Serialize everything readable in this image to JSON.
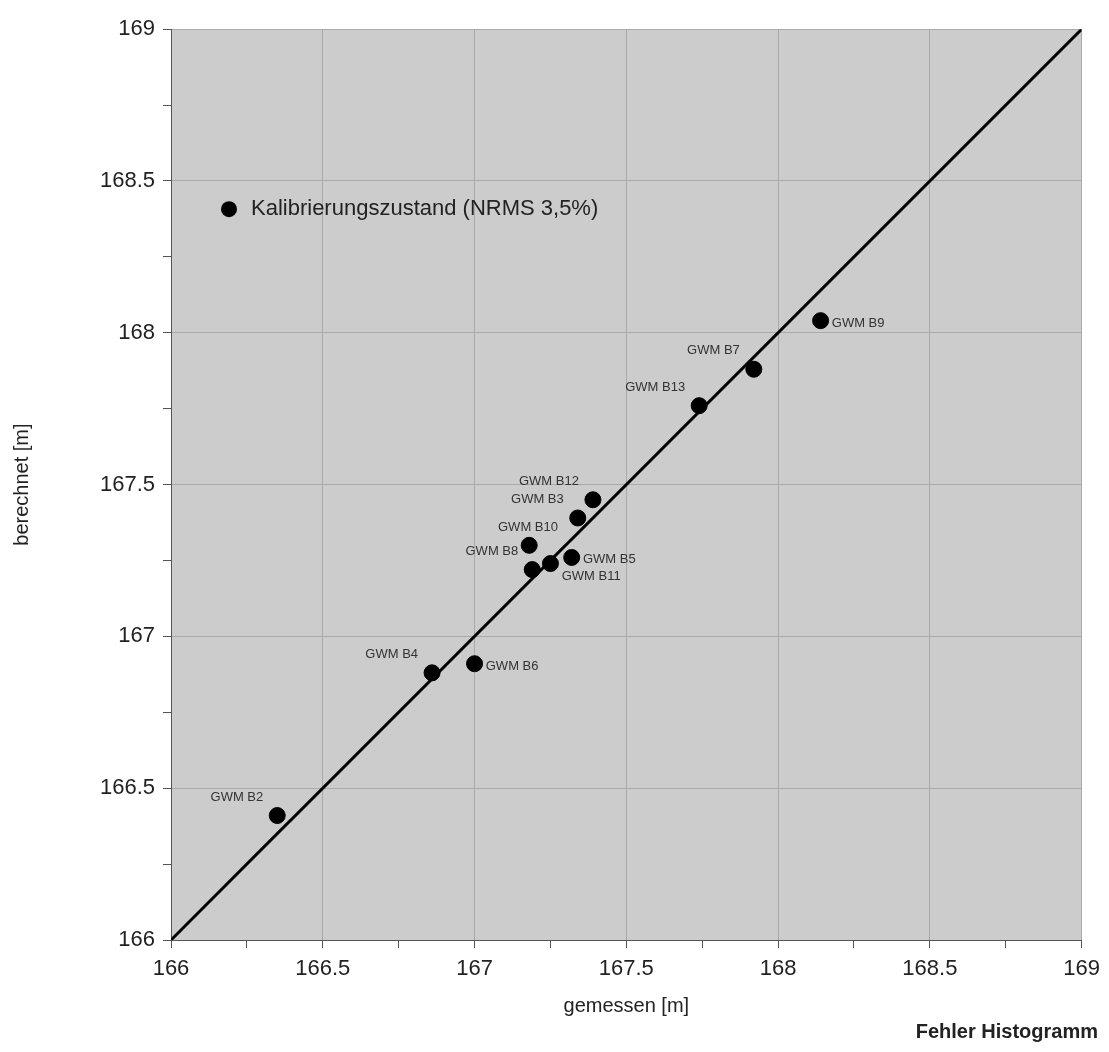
{
  "chart_data": {
    "type": "scatter",
    "xlabel": "gemessen [m]",
    "ylabel": "berechnet [m]",
    "xlim": [
      166,
      169
    ],
    "ylim": [
      166,
      169
    ],
    "xticks": [
      166,
      {
        "value": 166.25,
        "label": null
      },
      166.5,
      {
        "value": 166.75,
        "label": null
      },
      167,
      {
        "value": 167.25,
        "label": null
      },
      167.5,
      {
        "value": 167.75,
        "label": null
      },
      168,
      {
        "value": 168.25,
        "label": null
      },
      168.5,
      {
        "value": 168.75,
        "label": null
      },
      169
    ],
    "yticks": [
      166,
      {
        "value": 166.25,
        "label": null
      },
      166.5,
      {
        "value": 166.75,
        "label": null
      },
      167,
      {
        "value": 167.25,
        "label": null
      },
      167.5,
      {
        "value": 167.75,
        "label": null
      },
      168,
      {
        "value": 168.25,
        "label": null
      },
      168.5,
      {
        "value": 168.75,
        "label": null
      },
      169
    ],
    "grid": true,
    "legend": "top left",
    "marker": "circle",
    "series": [
      {
        "name": "Kalibrierungszustand (NRMS 3,5%)",
        "color": "#000000",
        "x": [
          166.35,
          166.86,
          167.0,
          167.18,
          167.19,
          167.25,
          167.32,
          167.34,
          167.39,
          167.74,
          167.92,
          168.14
        ],
        "values": [
          166.41,
          166.88,
          166.91,
          167.3,
          167.22,
          167.24,
          167.26,
          167.39,
          167.45,
          167.76,
          167.88,
          168.04
        ]
      },
      {
        "type": "line",
        "color": "#000000",
        "x": [
          166,
          169
        ],
        "values": [
          166,
          169
        ],
        "marker": "none",
        "line_style": "solid"
      }
    ],
    "annotations": [
      {
        "text": "GWM B2",
        "x": 166.35,
        "y": 166.41
      },
      {
        "text": "GWM B4",
        "x": 166.86,
        "y": 166.88
      },
      {
        "text": "GWM B6",
        "x": 167.0,
        "y": 166.91
      },
      {
        "text": "GWM B10",
        "x": 167.18,
        "y": 167.3
      },
      {
        "text": "GWM B8",
        "x": 167.19,
        "y": 167.22
      },
      {
        "text": "GWM B11",
        "x": 167.25,
        "y": 167.24
      },
      {
        "text": "GWM B5",
        "x": 167.32,
        "y": 167.26
      },
      {
        "text": "GWM B3",
        "x": 167.34,
        "y": 167.39
      },
      {
        "text": "GWM B12",
        "x": 167.39,
        "y": 167.45
      },
      {
        "text": "GWM B13",
        "x": 167.74,
        "y": 167.76
      },
      {
        "text": "GWM B7",
        "x": 167.92,
        "y": 167.88
      },
      {
        "text": "GWM B9",
        "x": 168.14,
        "y": 168.04
      },
      "Fehler Histogramm"
    ]
  }
}
